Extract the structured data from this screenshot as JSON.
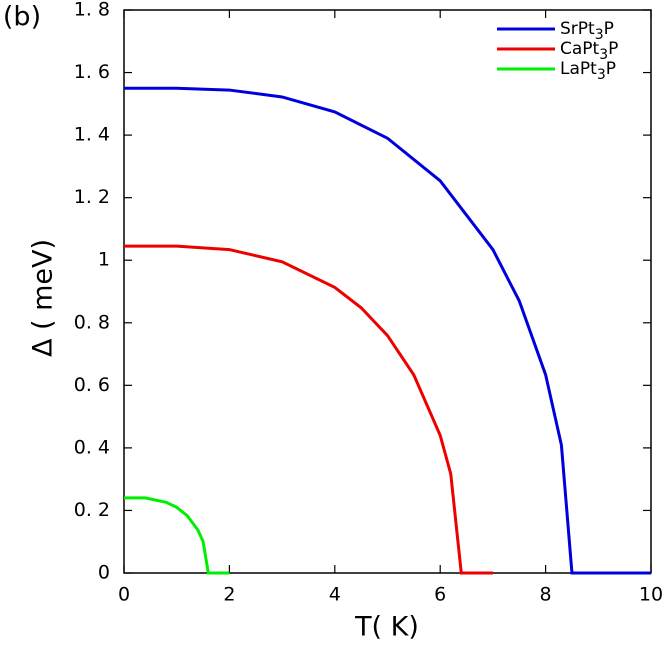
{
  "chart_data": {
    "type": "line",
    "panel_label": "(b)",
    "xlabel": "T( K)",
    "ylabel": "Δ ( meV)",
    "xlim": [
      0,
      10
    ],
    "ylim": [
      0,
      1.8
    ],
    "xticks": [
      0,
      2,
      4,
      6,
      8,
      10
    ],
    "yticks": [
      0,
      {
        "value": 0.2,
        "label": "0. 2"
      },
      {
        "value": 0.4,
        "label": "0. 4"
      },
      {
        "value": 0.6,
        "label": "0. 6"
      },
      {
        "value": 0.8,
        "label": "0. 8"
      },
      1,
      {
        "value": 1.2,
        "label": "1. 2"
      },
      {
        "value": 1.4,
        "label": "1. 4"
      },
      {
        "value": 1.6,
        "label": "1. 6"
      },
      {
        "value": 1.8,
        "label": "1. 8"
      }
    ],
    "legend": "upper right",
    "series": [
      {
        "name": "SrPt3P",
        "color": "#0000dd",
        "x": [
          0,
          1,
          2,
          3,
          4,
          5,
          6,
          7,
          7.5,
          8,
          8.3,
          8.5,
          10
        ],
        "values": [
          1.55,
          1.55,
          1.544,
          1.522,
          1.474,
          1.39,
          1.254,
          1.034,
          0.87,
          0.634,
          0.409,
          0,
          0
        ]
      },
      {
        "name": "CaPt3P",
        "color": "#ee0000",
        "x": [
          0,
          1,
          2,
          3,
          4,
          4.5,
          5,
          5.5,
          6,
          6.2,
          6.4,
          7
        ],
        "values": [
          1.045,
          1.045,
          1.034,
          0.995,
          0.913,
          0.848,
          0.759,
          0.633,
          0.44,
          0.317,
          0,
          0
        ]
      },
      {
        "name": "LaPt3P",
        "color": "#00ee00",
        "x": [
          0,
          0.4,
          0.8,
          1.0,
          1.2,
          1.4,
          1.5,
          1.6,
          2
        ],
        "values": [
          0.24,
          0.24,
          0.226,
          0.21,
          0.183,
          0.138,
          0.101,
          0,
          0
        ]
      }
    ]
  }
}
